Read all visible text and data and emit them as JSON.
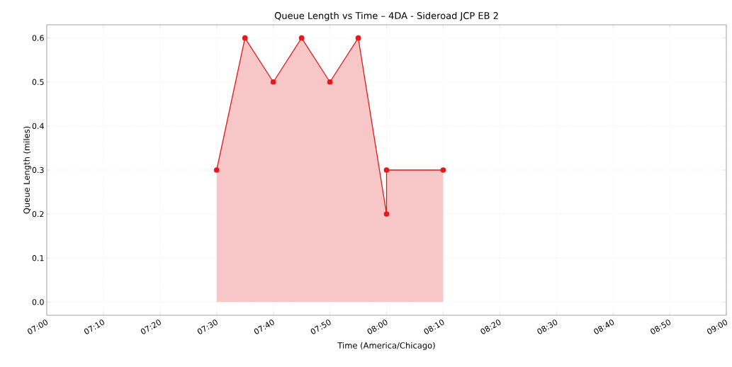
{
  "chart_data": {
    "type": "area",
    "title": "Queue Length vs Time – 4DA - Sideroad  JCP EB 2",
    "xlabel": "Time (America/Chicago)",
    "ylabel": "Queue Length (miles)",
    "x": [
      7.5,
      7.5833,
      7.6667,
      7.75,
      7.8333,
      7.9167,
      8,
      8,
      8.1667
    ],
    "series": [
      {
        "color": "#e01b1b",
        "values": [
          0.3,
          0.6,
          0.5,
          0.6,
          0.5,
          0.6,
          0.2,
          0.3,
          0.3
        ]
      }
    ],
    "xlim": [
      7,
      9
    ],
    "xticks": [
      {
        "value": 7,
        "label": "07:00"
      },
      {
        "value": 7.1667,
        "label": "07:10"
      },
      {
        "value": 7.3333,
        "label": "07:20"
      },
      {
        "value": 7.5,
        "label": "07:30"
      },
      {
        "value": 7.6667,
        "label": "07:40"
      },
      {
        "value": 7.8333,
        "label": "07:50"
      },
      {
        "value": 8,
        "label": "08:00"
      },
      {
        "value": 8.1667,
        "label": "08:10"
      },
      {
        "value": 8.3333,
        "label": "08:20"
      },
      {
        "value": 8.5,
        "label": "08:30"
      },
      {
        "value": 8.6667,
        "label": "08:40"
      },
      {
        "value": 8.8333,
        "label": "08:50"
      },
      {
        "value": 9,
        "label": "09:00"
      }
    ],
    "ylim": [
      -0.03,
      0.63
    ],
    "yticks": [
      {
        "value": 0,
        "label": "0.0"
      },
      {
        "value": 0.1,
        "label": "0.1"
      },
      {
        "value": 0.2,
        "label": "0.2"
      },
      {
        "value": 0.3,
        "label": "0.3"
      },
      {
        "value": 0.4,
        "label": "0.4"
      },
      {
        "value": 0.5,
        "label": "0.5"
      },
      {
        "value": 0.6,
        "label": "0.6"
      }
    ],
    "grid": true,
    "marker": "circle",
    "line_style": "solid"
  }
}
